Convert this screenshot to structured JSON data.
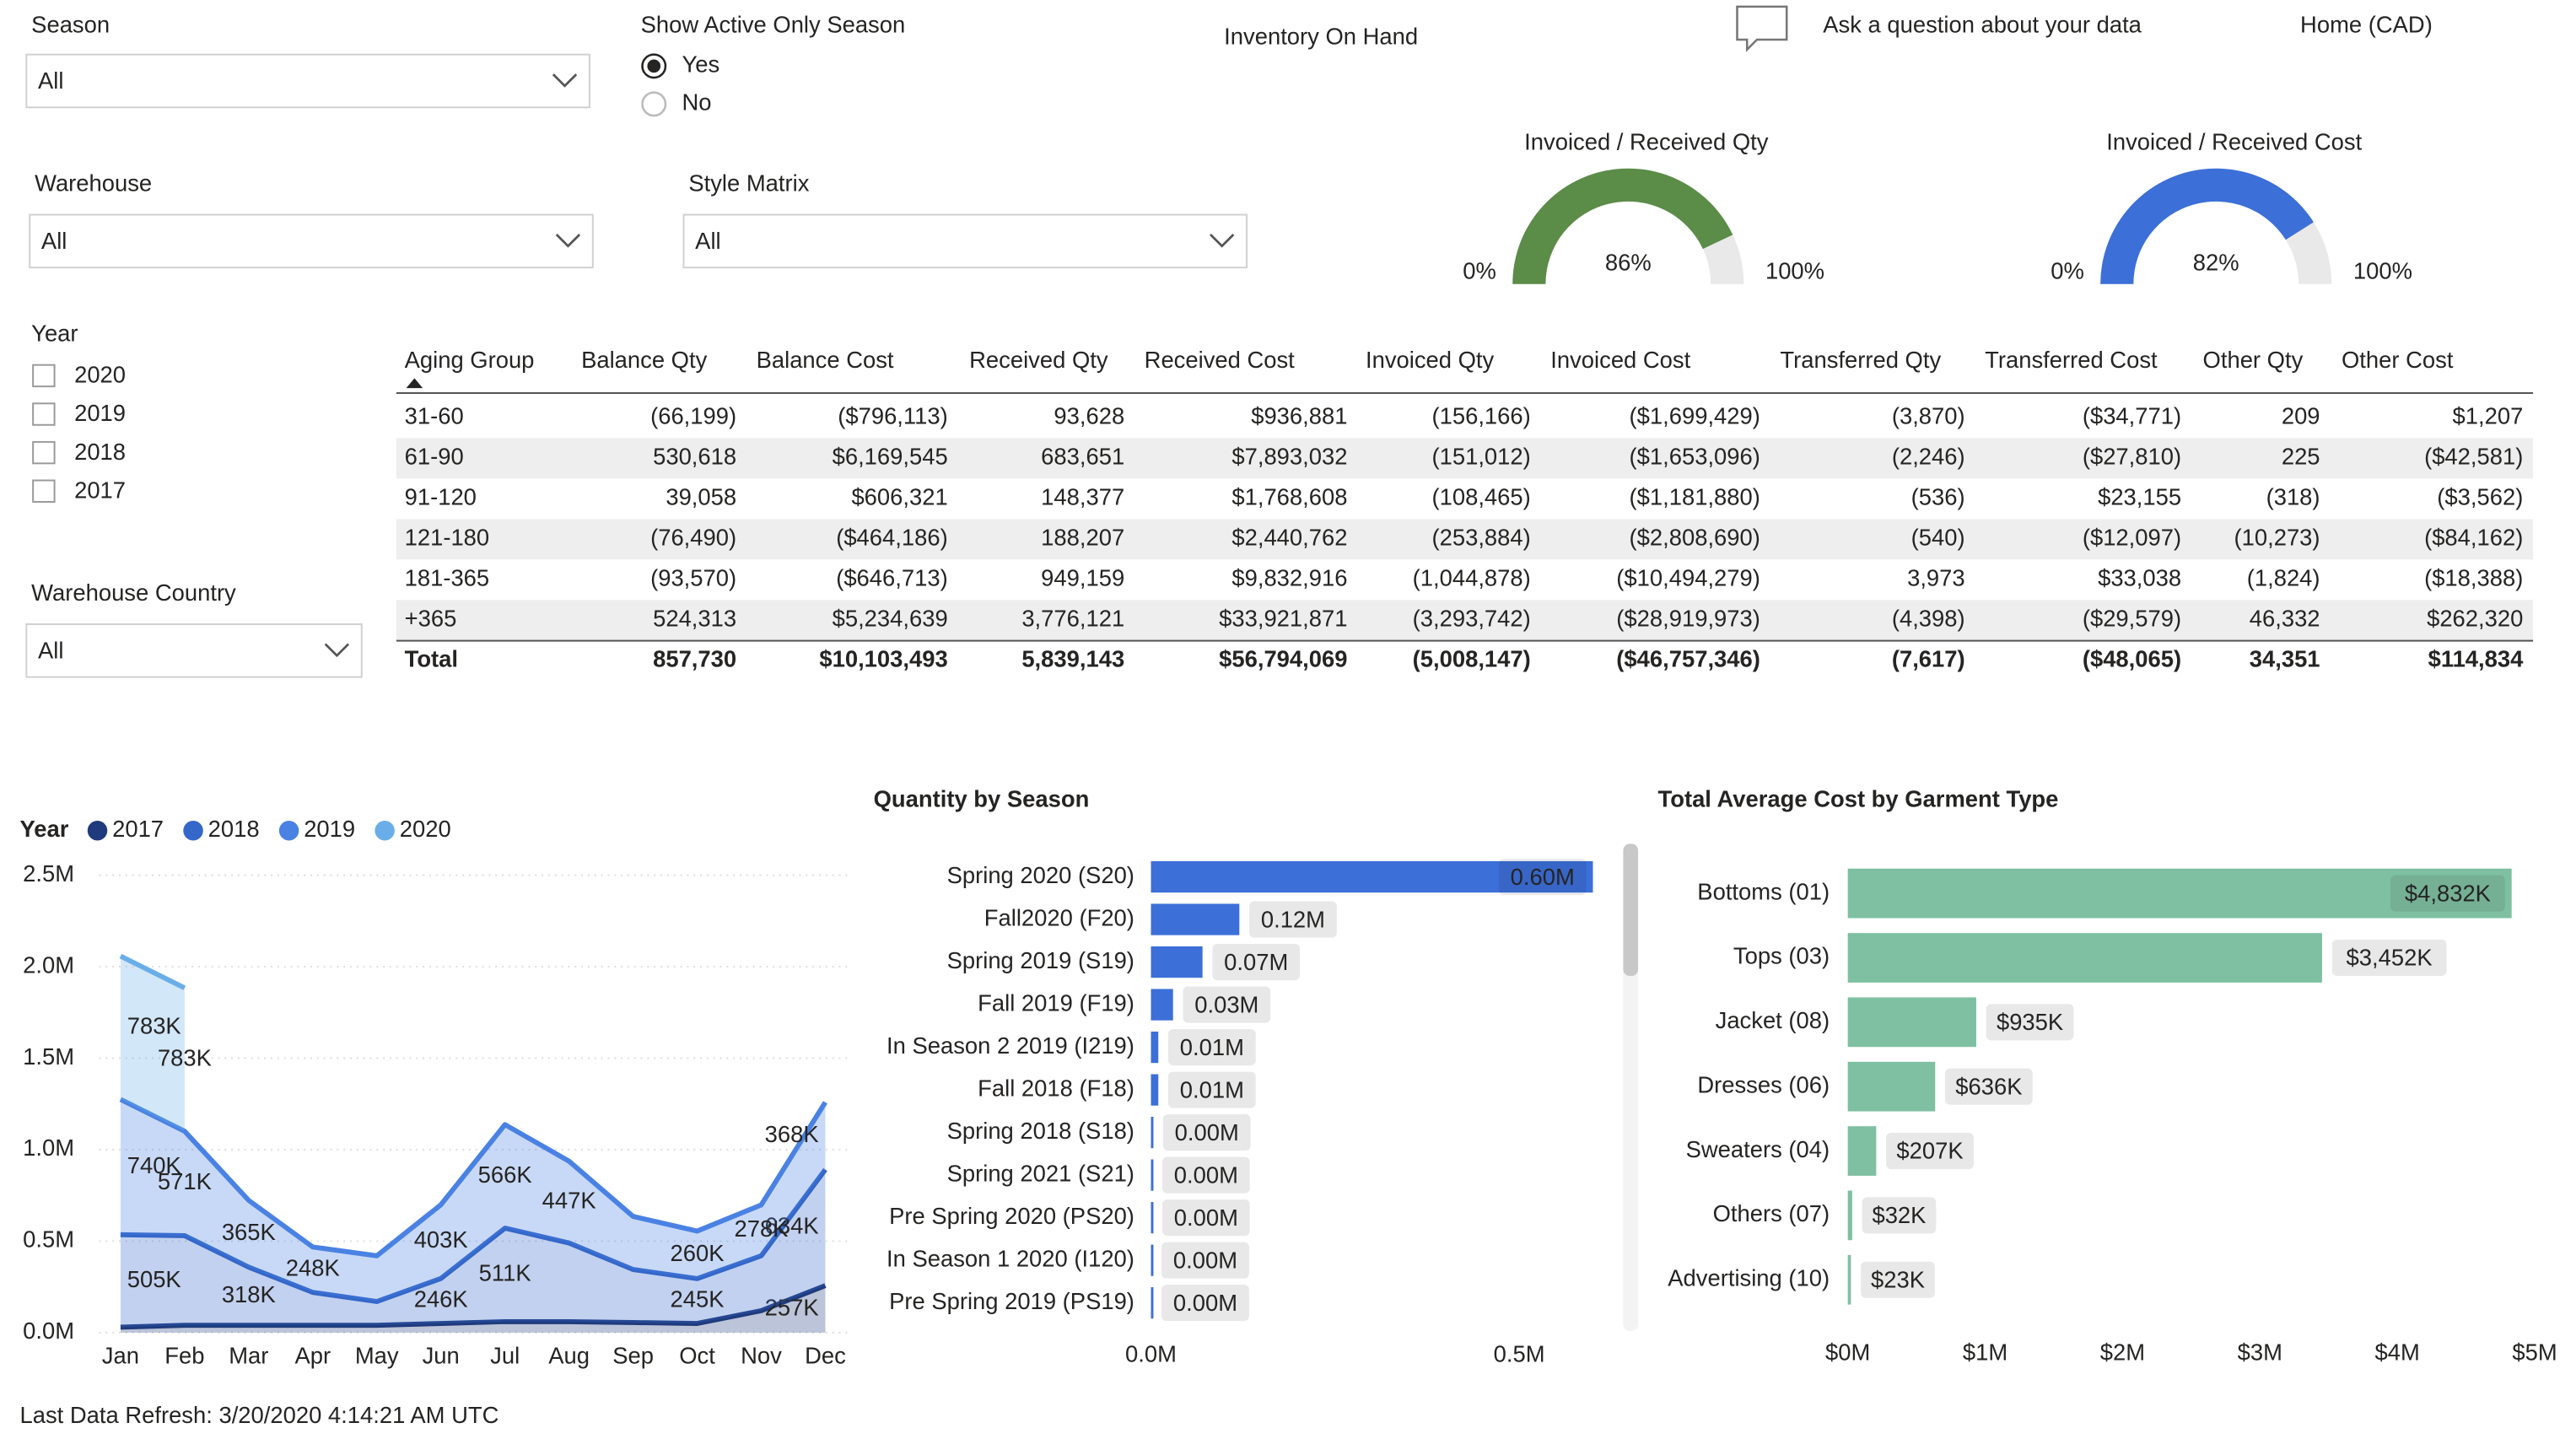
{
  "header": {
    "title": "Inventory On Hand",
    "qna": "Ask a question about your data",
    "page": "Home (CAD)"
  },
  "filters": {
    "season": {
      "label": "Season",
      "value": "All"
    },
    "active_season": {
      "label": "Show Active Only Season",
      "options": [
        "Yes",
        "No"
      ],
      "selected": 0
    },
    "warehouse": {
      "label": "Warehouse",
      "value": "All"
    },
    "style_matrix": {
      "label": "Style Matrix",
      "value": "All"
    },
    "year": {
      "label": "Year",
      "options": [
        "2020",
        "2019",
        "2018",
        "2017"
      ]
    },
    "warehouse_country": {
      "label": "Warehouse Country",
      "value": "All"
    }
  },
  "table": {
    "columns": [
      "Aging Group",
      "Balance Qty",
      "Balance Cost",
      "Received Qty",
      "Received Cost",
      "Invoiced Qty",
      "Invoiced Cost",
      "Transferred Qty",
      "Transferred Cost",
      "Other Qty",
      "Other Cost"
    ],
    "rows": [
      [
        "31-60",
        "(66,199)",
        "($796,113)",
        "93,628",
        "$936,881",
        "(156,166)",
        "($1,699,429)",
        "(3,870)",
        "($34,771)",
        "209",
        "$1,207"
      ],
      [
        "61-90",
        "530,618",
        "$6,169,545",
        "683,651",
        "$7,893,032",
        "(151,012)",
        "($1,653,096)",
        "(2,246)",
        "($27,810)",
        "225",
        "($42,581)"
      ],
      [
        "91-120",
        "39,058",
        "$606,321",
        "148,377",
        "$1,768,608",
        "(108,465)",
        "($1,181,880)",
        "(536)",
        "$23,155",
        "(318)",
        "($3,562)"
      ],
      [
        "121-180",
        "(76,490)",
        "($464,186)",
        "188,207",
        "$2,440,762",
        "(253,884)",
        "($2,808,690)",
        "(540)",
        "($12,097)",
        "(10,273)",
        "($84,162)"
      ],
      [
        "181-365",
        "(93,570)",
        "($646,713)",
        "949,159",
        "$9,832,916",
        "(1,044,878)",
        "($10,494,279)",
        "3,973",
        "$33,038",
        "(1,824)",
        "($18,388)"
      ],
      [
        "+365",
        "524,313",
        "$5,234,639",
        "3,776,121",
        "$33,921,871",
        "(3,293,742)",
        "($28,919,973)",
        "(4,398)",
        "($29,579)",
        "46,332",
        "$262,320"
      ]
    ],
    "total": [
      "Total",
      "857,730",
      "$10,103,493",
      "5,839,143",
      "$56,794,069",
      "(5,008,147)",
      "($46,757,346)",
      "(7,617)",
      "($48,065)",
      "34,351",
      "$114,834"
    ]
  },
  "chart_data": [
    {
      "type": "gauge",
      "title": "Invoiced / Received Qty",
      "value": 86,
      "value_label": "86%",
      "color": "#5b8c48",
      "ylim": [
        0,
        100
      ],
      "yticks": [
        {
          "value": 0,
          "label": "0%"
        },
        {
          "value": 100,
          "label": "100%"
        }
      ]
    },
    {
      "type": "gauge",
      "title": "Invoiced / Received Cost",
      "value": 82,
      "value_label": "82%",
      "color": "#3c6fd8",
      "ylim": [
        0,
        100
      ],
      "yticks": [
        {
          "value": 0,
          "label": "0%"
        },
        {
          "value": 100,
          "label": "100%"
        }
      ]
    },
    {
      "type": "stacked_area",
      "legend_title": "Year",
      "categories": [
        "Jan",
        "Feb",
        "Mar",
        "Apr",
        "May",
        "Jun",
        "Jul",
        "Aug",
        "Sep",
        "Oct",
        "Nov",
        "Dec"
      ],
      "ylim": [
        0,
        2500000
      ],
      "yticks": [
        {
          "value": 0,
          "label": "0.0M"
        },
        {
          "value": 500000,
          "label": "0.5M"
        },
        {
          "value": 1000000,
          "label": "1.0M"
        },
        {
          "value": 1500000,
          "label": "1.5M"
        },
        {
          "value": 2000000,
          "label": "2.0M"
        },
        {
          "value": 2500000,
          "label": "2.5M"
        }
      ],
      "grid": true,
      "series": [
        {
          "name": "2017",
          "color": "#1f3b7d",
          "values": [
            30000,
            40000,
            40000,
            40000,
            40000,
            50000,
            60000,
            60000,
            55000,
            50000,
            120000,
            257000
          ],
          "value_labels": [
            null,
            null,
            null,
            null,
            null,
            null,
            null,
            null,
            null,
            null,
            null,
            "257K"
          ]
        },
        {
          "name": "2018",
          "color": "#3467c9",
          "values": [
            505000,
            490000,
            318000,
            180000,
            130000,
            246000,
            511000,
            430000,
            290000,
            245000,
            300000,
            634000
          ],
          "value_labels": [
            "505K",
            null,
            "318K",
            null,
            null,
            "246K",
            "511K",
            null,
            null,
            "245K",
            null,
            "634K"
          ]
        },
        {
          "name": "2019",
          "color": "#4a82e4",
          "values": [
            740000,
            571000,
            365000,
            248000,
            250000,
            403000,
            566000,
            447000,
            290000,
            260000,
            278000,
            368000
          ],
          "value_labels": [
            "740K",
            "571K",
            "365K",
            "248K",
            null,
            "403K",
            "566K",
            "447K",
            null,
            "260K",
            "278K",
            "368K"
          ]
        },
        {
          "name": "2020",
          "color": "#6aaee9",
          "values": [
            783000,
            783000,
            null,
            null,
            null,
            null,
            null,
            null,
            null,
            null,
            null,
            null
          ],
          "value_labels": [
            "783K",
            "783K",
            null,
            null,
            null,
            null,
            null,
            null,
            null,
            null,
            null,
            null
          ]
        }
      ]
    },
    {
      "type": "hbar",
      "title": "Quantity by Season",
      "color": "#3c6fd8",
      "categories": [
        "Spring 2020 (S20)",
        "Fall2020 (F20)",
        "Spring 2019 (S19)",
        "Fall 2019 (F19)",
        "In Season 2 2019 (I219)",
        "Fall 2018 (F18)",
        "Spring 2018 (S18)",
        "Spring 2021 (S21)",
        "Pre Spring 2020 (PS20)",
        "In Season 1 2020 (I120)",
        "Pre Spring 2019 (PS19)"
      ],
      "values": [
        600000,
        120000,
        70000,
        30000,
        10000,
        10000,
        3000,
        2000,
        2000,
        1000,
        1000
      ],
      "value_labels": [
        "0.60M",
        "0.12M",
        "0.07M",
        "0.03M",
        "0.01M",
        "0.01M",
        "0.00M",
        "0.00M",
        "0.00M",
        "0.00M",
        "0.00M"
      ],
      "xlim": [
        0,
        612000
      ],
      "xticks": [
        {
          "value": 0,
          "label": "0.0M"
        },
        {
          "value": 500000,
          "label": "0.5M"
        }
      ]
    },
    {
      "type": "hbar",
      "title": "Total Average Cost by Garment Type",
      "color": "#7fbfa2",
      "categories": [
        "Bottoms (01)",
        "Tops (03)",
        "Jacket (08)",
        "Dresses (06)",
        "Sweaters (04)",
        "Others (07)",
        "Advertising (10)"
      ],
      "values": [
        4832000,
        3452000,
        935000,
        636000,
        207000,
        32000,
        23000
      ],
      "value_labels": [
        "$4,832K",
        "$3,452K",
        "$935K",
        "$636K",
        "$207K",
        "$32K",
        "$23K"
      ],
      "xlim": [
        0,
        5000000
      ],
      "xticks": [
        {
          "value": 0,
          "label": "$0M"
        },
        {
          "value": 1000000,
          "label": "$1M"
        },
        {
          "value": 2000000,
          "label": "$2M"
        },
        {
          "value": 3000000,
          "label": "$3M"
        },
        {
          "value": 4000000,
          "label": "$4M"
        },
        {
          "value": 5000000,
          "label": "$5M"
        }
      ]
    }
  ],
  "footer": "Last Data Refresh: 3/20/2020 4:14:21 AM UTC"
}
